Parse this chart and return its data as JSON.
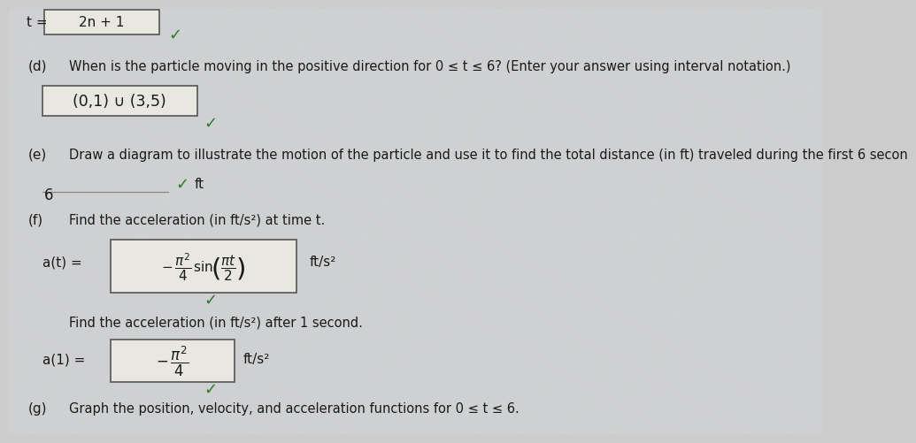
{
  "background_color": "#cccccc",
  "part_d_label": "(d)",
  "part_d_question": "When is the particle moving in the positive direction for 0 ≤ t ≤ 6? (Enter your answer using interval notation.)",
  "part_d_answer": "(0,1) ∪ (3,5)",
  "part_e_label": "(e)",
  "part_e_question": "Draw a diagram to illustrate the motion of the particle and use it to find the total distance (in ft) traveled during the first 6 secon",
  "part_e_answer": "6",
  "part_e_unit": "ft",
  "part_f_label": "(f)",
  "part_f_question": "Find the acceleration (in ft/s²) at time t.",
  "part_f_answer_label": "a(t) =",
  "part_f_unit": "ft/s²",
  "part_f2_question": "Find the acceleration (in ft/s²) after 1 second.",
  "part_f2_answer_label": "a(1) =",
  "part_f2_unit": "ft/s²",
  "part_g_label": "(g)",
  "part_g_question": "Graph the position, velocity, and acceleration functions for 0 ≤ t ≤ 6.",
  "checkmark_color": "#2d7a2d",
  "box_facecolor": "#e8e8e0",
  "box_edgecolor": "#555555",
  "text_color": "#1a1a1a",
  "top_box_text": "2n + 1",
  "top_label": "t =",
  "shimmer_alpha": 0.08
}
